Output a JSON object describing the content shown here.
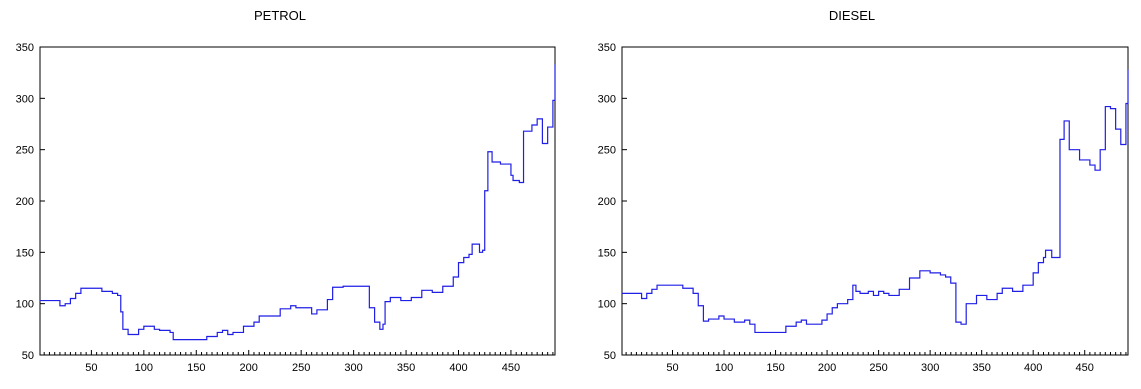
{
  "chart_data": [
    {
      "type": "line",
      "title": "PETROL",
      "xlabel": "",
      "ylabel": "",
      "xlim": [
        1,
        492
      ],
      "ylim": [
        50,
        350
      ],
      "x_ticks": [
        50,
        100,
        150,
        200,
        250,
        300,
        350,
        400,
        450
      ],
      "y_ticks": [
        50,
        100,
        150,
        200,
        250,
        300,
        350
      ],
      "grid": false,
      "color": "#1f1fe6",
      "series": [
        {
          "x": [
            1,
            15,
            20,
            25,
            30,
            35,
            40,
            55,
            60,
            70,
            75,
            78,
            80,
            85,
            95,
            100,
            110,
            115,
            125,
            128,
            150,
            160,
            170,
            175,
            180,
            185,
            195,
            205,
            210,
            220,
            230,
            240,
            245,
            255,
            260,
            265,
            275,
            280,
            290,
            300,
            310,
            315,
            320,
            325,
            328,
            330,
            335,
            345,
            355,
            365,
            375,
            385,
            395,
            400,
            405,
            410,
            413,
            420,
            423,
            425,
            428,
            432,
            440,
            450,
            452,
            458,
            462,
            470,
            475,
            480,
            485,
            490,
            492
          ],
          "y": [
            103,
            103,
            98,
            100,
            105,
            110,
            115,
            115,
            112,
            110,
            108,
            92,
            75,
            70,
            75,
            78,
            75,
            74,
            72,
            65,
            65,
            68,
            72,
            74,
            70,
            72,
            78,
            82,
            88,
            88,
            95,
            98,
            96,
            96,
            90,
            94,
            104,
            116,
            117,
            117,
            117,
            96,
            82,
            75,
            80,
            102,
            106,
            103,
            106,
            113,
            111,
            117,
            126,
            140,
            145,
            148,
            158,
            150,
            152,
            210,
            248,
            238,
            236,
            225,
            220,
            218,
            268,
            274,
            280,
            256,
            272,
            298,
            333
          ]
        }
      ]
    },
    {
      "type": "line",
      "title": "DIESEL",
      "xlabel": "",
      "ylabel": "",
      "xlim": [
        1,
        492
      ],
      "ylim": [
        50,
        350
      ],
      "x_ticks": [
        50,
        100,
        150,
        200,
        250,
        300,
        350,
        400,
        450
      ],
      "y_ticks": [
        50,
        100,
        150,
        200,
        250,
        300,
        350
      ],
      "grid": false,
      "color": "#1f1fe6",
      "series": [
        {
          "x": [
            1,
            10,
            20,
            25,
            30,
            35,
            40,
            50,
            60,
            70,
            75,
            80,
            85,
            95,
            100,
            110,
            120,
            125,
            130,
            150,
            160,
            170,
            175,
            180,
            190,
            195,
            200,
            205,
            210,
            215,
            220,
            225,
            228,
            232,
            240,
            245,
            250,
            255,
            260,
            270,
            280,
            290,
            300,
            310,
            315,
            320,
            325,
            330,
            335,
            345,
            355,
            365,
            370,
            380,
            390,
            400,
            405,
            410,
            412,
            418,
            420,
            423,
            426,
            430,
            435,
            445,
            455,
            460,
            465,
            470,
            475,
            480,
            485,
            490,
            492
          ],
          "y": [
            110,
            110,
            105,
            110,
            114,
            118,
            118,
            118,
            115,
            110,
            98,
            83,
            85,
            88,
            85,
            82,
            84,
            80,
            72,
            72,
            78,
            82,
            84,
            80,
            80,
            84,
            90,
            96,
            100,
            100,
            104,
            118,
            112,
            110,
            112,
            108,
            112,
            110,
            108,
            114,
            125,
            132,
            130,
            128,
            126,
            120,
            82,
            80,
            100,
            108,
            104,
            110,
            115,
            112,
            118,
            130,
            140,
            145,
            152,
            145,
            145,
            145,
            260,
            278,
            250,
            240,
            235,
            230,
            250,
            292,
            290,
            270,
            255,
            295,
            328
          ]
        }
      ]
    }
  ]
}
